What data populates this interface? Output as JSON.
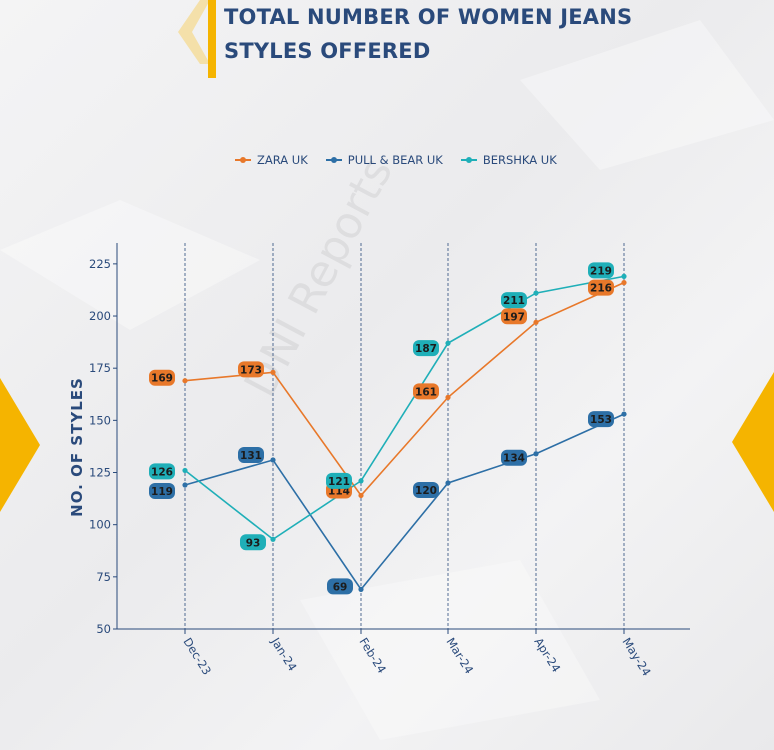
{
  "header": {
    "title_line1": "TOTAL NUMBER OF WOMEN JEANS",
    "title_line2": "STYLES OFFERED"
  },
  "watermark": "DNI Reports",
  "colors": {
    "zara": "#e8782a",
    "pullbear": "#2d6fa6",
    "bershka": "#1fafb8",
    "accent": "#f5b400",
    "text": "#2a4a7b"
  },
  "chart_data": {
    "type": "line",
    "categories": [
      "Dec-23",
      "Jan-24",
      "Feb-24",
      "Mar-24",
      "Apr-24",
      "May-24"
    ],
    "series": [
      {
        "name": "ZARA UK",
        "values": [
          169,
          173,
          114,
          161,
          197,
          216
        ]
      },
      {
        "name": "PULL & BEAR UK",
        "values": [
          119,
          131,
          69,
          120,
          134,
          153
        ]
      },
      {
        "name": "BERSHKA UK",
        "values": [
          126,
          93,
          121,
          187,
          211,
          219
        ]
      }
    ],
    "ylabel": "NO. OF STYLES",
    "xlabel": "",
    "ylim": [
      50,
      235
    ],
    "yticks": [
      50,
      75,
      100,
      125,
      150,
      175,
      200,
      225
    ],
    "legend_position": "top",
    "vertical_grid": "dashed"
  }
}
